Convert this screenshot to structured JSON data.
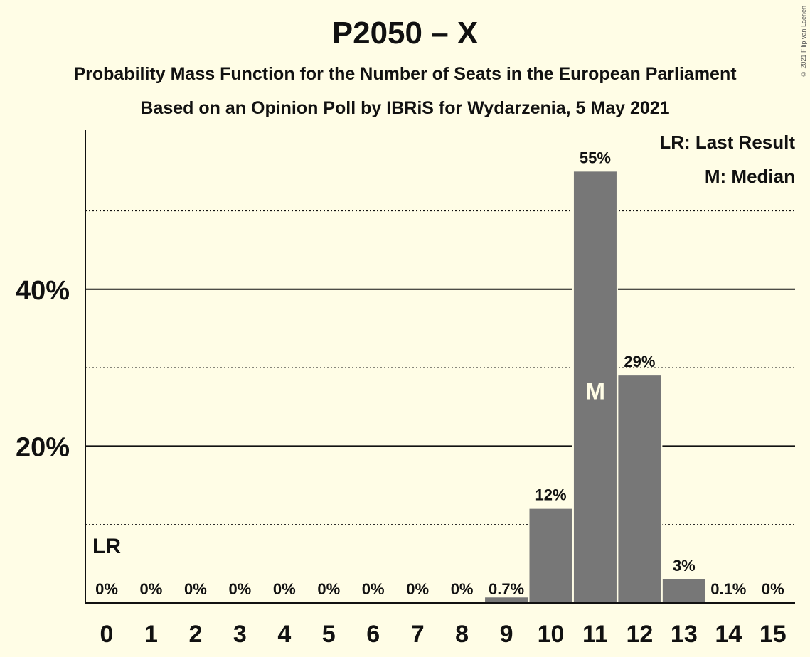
{
  "title": "P2050 – X",
  "subtitle1": "Probability Mass Function for the Number of Seats in the European Parliament",
  "subtitle2": "Based on an Opinion Poll by IBRiS for Wydarzenia, 5 May 2021",
  "copyright": "© 2021 Filip van Laenen",
  "legend": {
    "lr": "LR: Last Result",
    "m": "M: Median"
  },
  "colors": {
    "background": "#fffde6",
    "bar": "#777777",
    "text": "#111111"
  },
  "chart_data": {
    "type": "bar",
    "categories": [
      "0",
      "1",
      "2",
      "3",
      "4",
      "5",
      "6",
      "7",
      "8",
      "9",
      "10",
      "11",
      "12",
      "13",
      "14",
      "15"
    ],
    "values": [
      0,
      0,
      0,
      0,
      0,
      0,
      0,
      0,
      0,
      0.7,
      12,
      55,
      29,
      3,
      0.1,
      0
    ],
    "value_labels": [
      "0%",
      "0%",
      "0%",
      "0%",
      "0%",
      "0%",
      "0%",
      "0%",
      "0%",
      "0.7%",
      "12%",
      "55%",
      "29%",
      "3%",
      "0.1%",
      "0%"
    ],
    "y_ticks": [
      {
        "value": 20,
        "label": "20%"
      },
      {
        "value": 40,
        "label": "40%"
      }
    ],
    "minor_grid": [
      10,
      30,
      50
    ],
    "ylim": [
      0,
      60
    ],
    "last_result_seat": "0",
    "last_result_label": "LR",
    "median_seat": "11",
    "median_label": "M",
    "legend_position": "top-right"
  }
}
